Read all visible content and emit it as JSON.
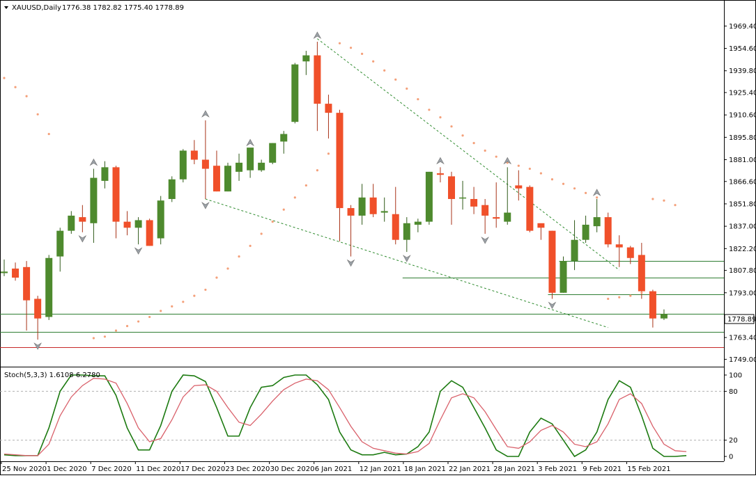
{
  "header": {
    "symbol": "XAUUSD,Daily",
    "ohlc": "1776.38 1782.82 1775.40 1778.89"
  },
  "stoch": {
    "label": "Stoch(5,3,3) 1.6108 6.2780"
  },
  "colors": {
    "bull": "#4e8a2e",
    "bear": "#f0502a",
    "sar": "#f4a07a",
    "trend": "#2e8b2e",
    "stoch_main": "#1c7a10",
    "stoch_signal": "#d9606a"
  },
  "chart_data": [
    {
      "type": "candlestick",
      "title": "XAUUSD,Daily",
      "y_axis": {
        "ticks": [
          "1969.40",
          "1954.60",
          "1939.80",
          "1925.40",
          "1910.60",
          "1895.80",
          "1881.00",
          "1866.60",
          "1851.80",
          "1837.00",
          "1822.20",
          "1807.80",
          "1793.00",
          "1763.40",
          "1749.00"
        ],
        "range": [
          1745.5,
          1977.4
        ]
      },
      "x_axis": {
        "ticks": [
          "25 Nov 2020",
          "1 Dec 2020",
          "7 Dec 2020",
          "11 Dec 2020",
          "17 Dec 2020",
          "23 Dec 2020",
          "30 Dec 2020",
          "6 Jan 2021",
          "12 Jan 2021",
          "18 Jan 2021",
          "22 Jan 2021",
          "28 Jan 2021",
          "3 Feb 2021",
          "9 Feb 2021",
          "15 Feb 2021"
        ]
      },
      "last_price": "1778.89",
      "candles": [
        {
          "o": 1806,
          "h": 1815,
          "l": 1804,
          "c": 1807
        },
        {
          "o": 1809,
          "h": 1813,
          "l": 1801,
          "c": 1803
        },
        {
          "o": 1810,
          "h": 1814,
          "l": 1768,
          "c": 1788
        },
        {
          "o": 1789,
          "h": 1791,
          "l": 1762,
          "c": 1776
        },
        {
          "o": 1777,
          "h": 1818,
          "l": 1775,
          "c": 1816
        },
        {
          "o": 1817,
          "h": 1836,
          "l": 1807,
          "c": 1834
        },
        {
          "o": 1834,
          "h": 1847,
          "l": 1832,
          "c": 1844
        },
        {
          "o": 1843,
          "h": 1851,
          "l": 1833,
          "c": 1840
        },
        {
          "o": 1839,
          "h": 1875,
          "l": 1826,
          "c": 1869
        },
        {
          "o": 1867,
          "h": 1880,
          "l": 1862,
          "c": 1876
        },
        {
          "o": 1876,
          "h": 1877,
          "l": 1829,
          "c": 1840
        },
        {
          "o": 1840,
          "h": 1847,
          "l": 1831,
          "c": 1836
        },
        {
          "o": 1836,
          "h": 1843,
          "l": 1825,
          "c": 1841
        },
        {
          "o": 1841,
          "h": 1842,
          "l": 1824,
          "c": 1824
        },
        {
          "o": 1829,
          "h": 1857,
          "l": 1825,
          "c": 1854
        },
        {
          "o": 1855,
          "h": 1870,
          "l": 1853,
          "c": 1868
        },
        {
          "o": 1868,
          "h": 1888,
          "l": 1866,
          "c": 1887
        },
        {
          "o": 1887,
          "h": 1894,
          "l": 1878,
          "c": 1881
        },
        {
          "o": 1881,
          "h": 1907,
          "l": 1855,
          "c": 1875
        },
        {
          "o": 1877,
          "h": 1887,
          "l": 1860,
          "c": 1860
        },
        {
          "o": 1860,
          "h": 1879,
          "l": 1860,
          "c": 1877
        },
        {
          "o": 1873,
          "h": 1885,
          "l": 1867,
          "c": 1879
        },
        {
          "o": 1874,
          "h": 1888,
          "l": 1869,
          "c": 1889
        },
        {
          "o": 1874,
          "h": 1881,
          "l": 1873,
          "c": 1879
        },
        {
          "o": 1879,
          "h": 1892,
          "l": 1878,
          "c": 1892
        },
        {
          "o": 1893,
          "h": 1900,
          "l": 1885,
          "c": 1898
        },
        {
          "o": 1906,
          "h": 1945,
          "l": 1905,
          "c": 1944
        },
        {
          "o": 1946,
          "h": 1953,
          "l": 1937,
          "c": 1950
        },
        {
          "o": 1950,
          "h": 1959,
          "l": 1900,
          "c": 1918
        },
        {
          "o": 1918,
          "h": 1924,
          "l": 1895,
          "c": 1912
        },
        {
          "o": 1912,
          "h": 1914,
          "l": 1827,
          "c": 1849
        },
        {
          "o": 1849,
          "h": 1851,
          "l": 1817,
          "c": 1844
        },
        {
          "o": 1844,
          "h": 1865,
          "l": 1838,
          "c": 1856
        },
        {
          "o": 1856,
          "h": 1865,
          "l": 1843,
          "c": 1845
        },
        {
          "o": 1846,
          "h": 1856,
          "l": 1840,
          "c": 1847
        },
        {
          "o": 1845,
          "h": 1863,
          "l": 1825,
          "c": 1828
        },
        {
          "o": 1828,
          "h": 1843,
          "l": 1820,
          "c": 1839
        },
        {
          "o": 1838,
          "h": 1842,
          "l": 1833,
          "c": 1840
        },
        {
          "o": 1840,
          "h": 1873,
          "l": 1838,
          "c": 1873
        },
        {
          "o": 1872,
          "h": 1876,
          "l": 1866,
          "c": 1871
        },
        {
          "o": 1870,
          "h": 1873,
          "l": 1838,
          "c": 1855
        },
        {
          "o": 1856,
          "h": 1867,
          "l": 1848,
          "c": 1856
        },
        {
          "o": 1855,
          "h": 1863,
          "l": 1845,
          "c": 1850
        },
        {
          "o": 1851,
          "h": 1855,
          "l": 1832,
          "c": 1844
        },
        {
          "o": 1843,
          "h": 1866,
          "l": 1836,
          "c": 1842
        },
        {
          "o": 1840,
          "h": 1876,
          "l": 1838,
          "c": 1846
        },
        {
          "o": 1864,
          "h": 1874,
          "l": 1854,
          "c": 1862
        },
        {
          "o": 1863,
          "h": 1864,
          "l": 1833,
          "c": 1834
        },
        {
          "o": 1839,
          "h": 1838,
          "l": 1828,
          "c": 1836
        },
        {
          "o": 1834,
          "h": 1834,
          "l": 1789,
          "c": 1793
        },
        {
          "o": 1793,
          "h": 1817,
          "l": 1793,
          "c": 1814
        },
        {
          "o": 1814,
          "h": 1841,
          "l": 1808,
          "c": 1828
        },
        {
          "o": 1828,
          "h": 1844,
          "l": 1826,
          "c": 1838
        },
        {
          "o": 1837,
          "h": 1855,
          "l": 1833,
          "c": 1843
        },
        {
          "o": 1843,
          "h": 1846,
          "l": 1823,
          "c": 1825
        },
        {
          "o": 1825,
          "h": 1831,
          "l": 1810,
          "c": 1823
        },
        {
          "o": 1823,
          "h": 1824,
          "l": 1812,
          "c": 1816
        },
        {
          "o": 1818,
          "h": 1826,
          "l": 1789,
          "c": 1794
        },
        {
          "o": 1794,
          "h": 1795,
          "l": 1770,
          "c": 1776
        },
        {
          "o": 1776,
          "h": 1782,
          "l": 1775,
          "c": 1779
        }
      ],
      "parabolic_sar": [
        [
          0,
          1935
        ],
        [
          1,
          1929
        ],
        [
          2,
          1923
        ],
        [
          3,
          1911
        ],
        [
          4,
          1898
        ],
        [
          8,
          1763
        ],
        [
          9,
          1764
        ],
        [
          10,
          1768
        ],
        [
          11,
          1771
        ],
        [
          12,
          1774
        ],
        [
          13,
          1777
        ],
        [
          14,
          1781
        ],
        [
          15,
          1784
        ],
        [
          16,
          1787
        ],
        [
          17,
          1791
        ],
        [
          18,
          1795
        ],
        [
          19,
          1803
        ],
        [
          20,
          1809
        ],
        [
          21,
          1817
        ],
        [
          22,
          1824
        ],
        [
          23,
          1832
        ],
        [
          24,
          1840
        ],
        [
          25,
          1848
        ],
        [
          26,
          1856
        ],
        [
          27,
          1864
        ],
        [
          28,
          1874
        ],
        [
          29,
          1885
        ],
        [
          30,
          1958
        ],
        [
          31,
          1955
        ],
        [
          32,
          1951
        ],
        [
          33,
          1946
        ],
        [
          34,
          1940
        ],
        [
          35,
          1934
        ],
        [
          36,
          1928
        ],
        [
          37,
          1921
        ],
        [
          38,
          1914
        ],
        [
          39,
          1909
        ],
        [
          40,
          1903
        ],
        [
          41,
          1897
        ],
        [
          42,
          1892
        ],
        [
          43,
          1887
        ],
        [
          44,
          1883
        ],
        [
          45,
          1879
        ],
        [
          46,
          1877
        ],
        [
          47,
          1875
        ],
        [
          48,
          1872
        ],
        [
          49,
          1868
        ],
        [
          50,
          1865
        ],
        [
          51,
          1862
        ],
        [
          52,
          1859
        ],
        [
          53,
          1856
        ],
        [
          54,
          1789
        ],
        [
          55,
          1790
        ],
        [
          56,
          1791
        ],
        [
          57,
          1793
        ],
        [
          58,
          1855
        ],
        [
          59,
          1854
        ],
        [
          60,
          1851
        ]
      ],
      "fractals": [
        {
          "i": 8,
          "dir": "up"
        },
        {
          "i": 3,
          "dir": "down"
        },
        {
          "i": 7,
          "dir": "down"
        },
        {
          "i": 12,
          "dir": "down"
        },
        {
          "i": 18,
          "dir": "up"
        },
        {
          "i": 18,
          "dir": "down"
        },
        {
          "i": 22,
          "dir": "up"
        },
        {
          "i": 28,
          "dir": "up"
        },
        {
          "i": 31,
          "dir": "down"
        },
        {
          "i": 36,
          "dir": "down"
        },
        {
          "i": 39,
          "dir": "up"
        },
        {
          "i": 43,
          "dir": "down"
        },
        {
          "i": 45,
          "dir": "up"
        },
        {
          "i": 49,
          "dir": "down"
        },
        {
          "i": 53,
          "dir": "up"
        }
      ],
      "trendlines": [
        {
          "from": [
            28,
            1961
          ],
          "to": [
            55,
            1808
          ]
        },
        {
          "from": [
            18,
            1855
          ],
          "to": [
            54,
            1770
          ]
        }
      ],
      "horizontal_lines": [
        {
          "price": 1814,
          "from": 50,
          "green": true
        },
        {
          "price": 1803,
          "from": 36,
          "green": true
        },
        {
          "price": 1792,
          "from": 49,
          "green": true
        },
        {
          "price": 1778.89,
          "from": 0,
          "green": true
        },
        {
          "price": 1767,
          "from": 0,
          "green": true
        },
        {
          "price": 1757,
          "from": 0,
          "green": false
        }
      ]
    },
    {
      "type": "line",
      "title": "Stoch(5,3,3) 1.6108 6.2780",
      "y_axis": {
        "ticks": [
          "100",
          "80",
          "20",
          "0"
        ],
        "range": [
          0,
          100
        ]
      },
      "series": [
        {
          "name": "Stoch(5,3,3)",
          "values": [
            2,
            1,
            1,
            1,
            35,
            80,
            100,
            100,
            99,
            99,
            75,
            35,
            8,
            8,
            38,
            80,
            100,
            99,
            92,
            60,
            25,
            25,
            60,
            85,
            87,
            97,
            100,
            100,
            88,
            70,
            30,
            8,
            2,
            2,
            5,
            2,
            3,
            12,
            30,
            80,
            93,
            85,
            60,
            35,
            8,
            0,
            0,
            30,
            47,
            40,
            20,
            0,
            8,
            30,
            70,
            93,
            85,
            50,
            10,
            0,
            0,
            1
          ]
        },
        {
          "name": "Signal",
          "values": [
            3,
            2,
            1,
            1,
            15,
            50,
            73,
            87,
            96,
            95,
            90,
            65,
            35,
            18,
            22,
            45,
            73,
            87,
            88,
            80,
            60,
            42,
            38,
            52,
            68,
            82,
            90,
            95,
            93,
            82,
            60,
            37,
            18,
            10,
            7,
            4,
            3,
            6,
            16,
            45,
            72,
            77,
            72,
            55,
            33,
            12,
            10,
            18,
            32,
            38,
            30,
            15,
            12,
            18,
            40,
            70,
            77,
            65,
            37,
            15,
            7,
            6
          ]
        }
      ]
    }
  ]
}
